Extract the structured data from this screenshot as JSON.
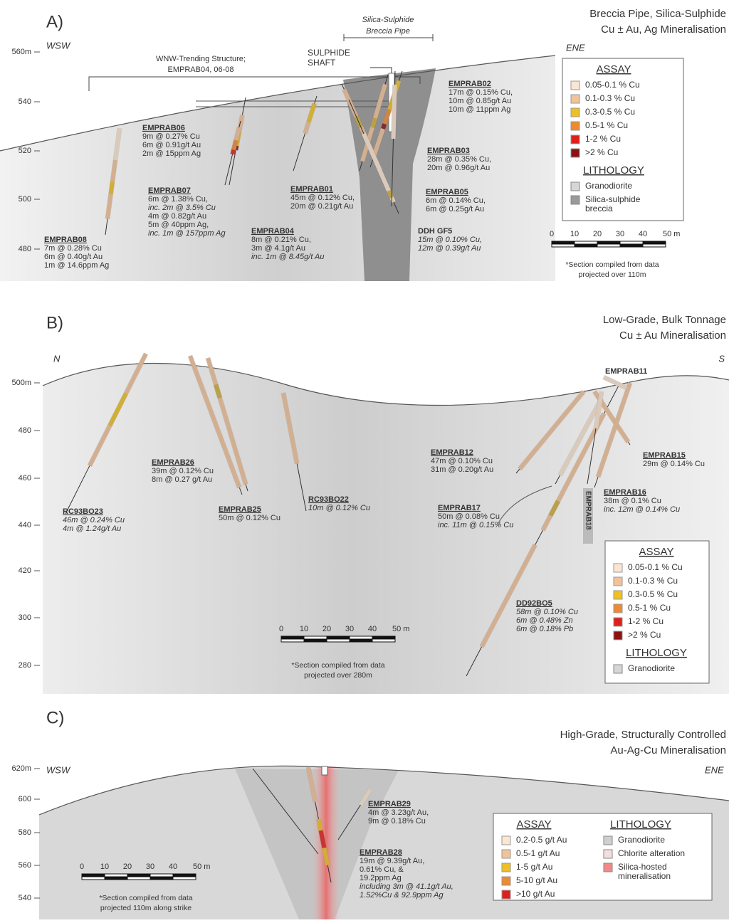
{
  "panels": [
    {
      "label": "A)",
      "title": [
        "Breccia Pipe, Silica-Sulphide",
        "Cu ± Au, Ag Mineralisation"
      ],
      "directions": [
        "WSW",
        "ENE"
      ],
      "elevations": [
        "560m",
        "540",
        "520",
        "500",
        "480"
      ],
      "pipe_label": [
        "Silica-Sulphide",
        "Breccia Pipe"
      ],
      "shaft_label": [
        "SULPHIDE",
        "SHAFT"
      ],
      "structure_label": [
        "WNW-Trending Structure;",
        "EMPRAB04, 06-08"
      ],
      "holes": [
        {
          "name": "EMPRAB02",
          "lines": [
            "17m @ 0.15% Cu,",
            "10m @ 0.85g/t Au",
            "10m @ 11ppm Ag"
          ]
        },
        {
          "name": "EMPRAB06",
          "lines": [
            "9m @ 0.27% Cu",
            "6m @ 0.91g/t Au",
            "2m @ 15ppm Ag"
          ]
        },
        {
          "name": "EMPRAB03",
          "lines": [
            "28m @ 0.35% Cu,",
            "20m @ 0.96g/t Au"
          ]
        },
        {
          "name": "EMPRAB07",
          "lines": [
            "6m @ 1.38% Cu,",
            {
              "text": "inc. 2m @ 3.5% Cu",
              "style": "italic"
            },
            "4m @ 0.82g/t Au",
            "5m @ 40ppm Ag,",
            {
              "text": "inc. 1m @ 157ppm Ag",
              "style": "italic"
            }
          ]
        },
        {
          "name": "EMPRAB01",
          "lines": [
            "45m @ 0.12% Cu,",
            "20m @ 0.21g/t Au"
          ]
        },
        {
          "name": "EMPRAB05",
          "lines": [
            "6m @ 0.14% Cu,",
            "6m @ 0.25g/t Au"
          ]
        },
        {
          "name": "EMPRAB04",
          "lines": [
            "8m @ 0.21% Cu,",
            "3m @ 4.1g/t Au",
            {
              "text": "inc. 1m @ 8.45g/t Au",
              "style": "italic"
            }
          ]
        },
        {
          "name": "DDH GF5",
          "lines": [
            {
              "text": "15m @ 0.10% Cu,",
              "style": "italic"
            },
            {
              "text": "12m @ 0.39g/t Au",
              "style": "italic"
            }
          ]
        },
        {
          "name": "EMPRAB08",
          "lines": [
            "7m @ 0.28% Cu",
            "6m @ 0.40g/t Au",
            "1m @ 14.6ppm Ag"
          ]
        }
      ],
      "legend": {
        "assay_title": "ASSAY",
        "assay": [
          {
            "label": "0.05-0.1 % Cu",
            "color": "#fbe6d2"
          },
          {
            "label": "0.1-0.3 % Cu",
            "color": "#f2c29a"
          },
          {
            "label": "0.3-0.5 % Cu",
            "color": "#efc023"
          },
          {
            "label": "0.5-1 % Cu",
            "color": "#ee8a33"
          },
          {
            "label": "1-2 % Cu",
            "color": "#df1f1a"
          },
          {
            "label": ">2 % Cu",
            "color": "#8a1212"
          }
        ],
        "lithology_title": "LITHOLOGY",
        "lithology": [
          {
            "label": [
              "Granodiorite"
            ],
            "color": "#d6d6d6"
          },
          {
            "label": [
              "Silica-sulphide",
              "breccia"
            ],
            "color": "#9a9a9a"
          }
        ]
      },
      "scale": [
        "0",
        "10",
        "20",
        "30",
        "40",
        "50 m"
      ],
      "note": [
        "*Section compiled from data",
        "projected over 110m"
      ]
    },
    {
      "label": "B)",
      "title": [
        "Low-Grade, Bulk Tonnage",
        "Cu ± Au Mineralisation"
      ],
      "directions": [
        "N",
        "S"
      ],
      "elevations": [
        "500m",
        "480",
        "460",
        "440",
        "420",
        "300",
        "280"
      ],
      "holes": [
        {
          "name": "EMPRAB11"
        },
        {
          "name": "EMPRAB12",
          "lines": [
            "47m @ 0.10% Cu",
            "31m @ 0.20g/t Au"
          ]
        },
        {
          "name": "EMPRAB15",
          "lines": [
            "29m @ 0.14% Cu"
          ]
        },
        {
          "name": "EMPRAB26",
          "lines": [
            "39m @ 0.12% Cu",
            "8m @ 0.27 g/t Au"
          ]
        },
        {
          "name": "EMPRAB16",
          "lines": [
            "38m @ 0.1% Cu",
            {
              "text": "inc. 12m @ 0.14% Cu",
              "style": "italic"
            }
          ]
        },
        {
          "name": "RC93BO22",
          "lines": [
            {
              "text": "10m @ 0.12% Cu",
              "style": "italic"
            }
          ]
        },
        {
          "name": "EMPRAB25",
          "lines": [
            "50m @ 0.12% Cu"
          ]
        },
        {
          "name": "RC93BO23",
          "lines": [
            {
              "text": "46m @ 0.24% Cu",
              "style": "italic"
            },
            {
              "text": "4m @ 1.24g/t Au",
              "style": "italic"
            }
          ]
        },
        {
          "name": "EMPRAB17",
          "lines": [
            "50m @ 0.08% Cu",
            {
              "text": "inc. 11m @ 0.15% Cu",
              "style": "italic"
            }
          ]
        },
        {
          "name": "EMPRAB18"
        },
        {
          "name": "DD92BO5",
          "lines": [
            {
              "text": "58m @ 0.10% Cu",
              "style": "italic"
            },
            {
              "text": "6m @ 0.48% Zn",
              "style": "italic"
            },
            {
              "text": "6m @ 0.18% Pb",
              "style": "italic"
            }
          ]
        }
      ],
      "legend": {
        "assay_title": "ASSAY",
        "assay": [
          {
            "label": "0.05-0.1 % Cu",
            "color": "#fbe6d2"
          },
          {
            "label": "0.1-0.3 % Cu",
            "color": "#f2c29a"
          },
          {
            "label": "0.3-0.5 % Cu",
            "color": "#efc023"
          },
          {
            "label": "0.5-1 % Cu",
            "color": "#ee8a33"
          },
          {
            "label": "1-2 % Cu",
            "color": "#df1f1a"
          },
          {
            "label": ">2 % Cu",
            "color": "#8a1212"
          }
        ],
        "lithology_title": "LITHOLOGY",
        "lithology": [
          {
            "label": [
              "Granodiorite"
            ],
            "color": "#d6d6d6"
          }
        ]
      },
      "scale": [
        "0",
        "10",
        "20",
        "30",
        "40",
        "50 m"
      ],
      "note": [
        "*Section compiled from data",
        "projected over 280m"
      ]
    },
    {
      "label": "C)",
      "title": [
        "High-Grade, Structurally Controlled",
        "Au-Ag-Cu Mineralisation"
      ],
      "directions": [
        "WSW",
        "ENE"
      ],
      "elevations": [
        "620m",
        "600",
        "580",
        "560",
        "540"
      ],
      "holes": [
        {
          "name": "EMPRAB29",
          "lines": [
            "4m @ 3.23g/t Au,",
            "9m @ 0.18% Cu"
          ]
        },
        {
          "name": "EMPRAB28",
          "lines": [
            "19m @ 9.39g/t Au,",
            "0.61% Cu, &",
            "19.2ppm Ag",
            {
              "text": "including 3m @ 41.1g/t Au,",
              "style": "italic"
            },
            {
              "text": "1.52%Cu & 92.9ppm Ag",
              "style": "italic"
            }
          ]
        }
      ],
      "legend": {
        "assay_title": "ASSAY",
        "assay": [
          {
            "label": "0.2-0.5 g/t Au",
            "color": "#fbe6d2"
          },
          {
            "label": "0.5-1 g/t Au",
            "color": "#f2c29a"
          },
          {
            "label": "1-5 g/t Au",
            "color": "#efc023"
          },
          {
            "label": "5-10 g/t Au",
            "color": "#ee8a33"
          },
          {
            "label": ">10 g/t Au",
            "color": "#df1f1a"
          }
        ],
        "lithology_title": "LITHOLOGY",
        "lithology": [
          {
            "label": [
              "Granodiorite"
            ],
            "color": "#cfcfcf"
          },
          {
            "label": [
              "Chlorite alteration"
            ],
            "color": "#f6dede"
          },
          {
            "label": [
              "Silica-hosted",
              "mineralisation"
            ],
            "color": "#f08a8a"
          }
        ]
      },
      "scale": [
        "0",
        "10",
        "20",
        "30",
        "40",
        "50 m"
      ],
      "note": [
        "*Section compiled from data",
        "projected 110m along strike"
      ]
    }
  ]
}
